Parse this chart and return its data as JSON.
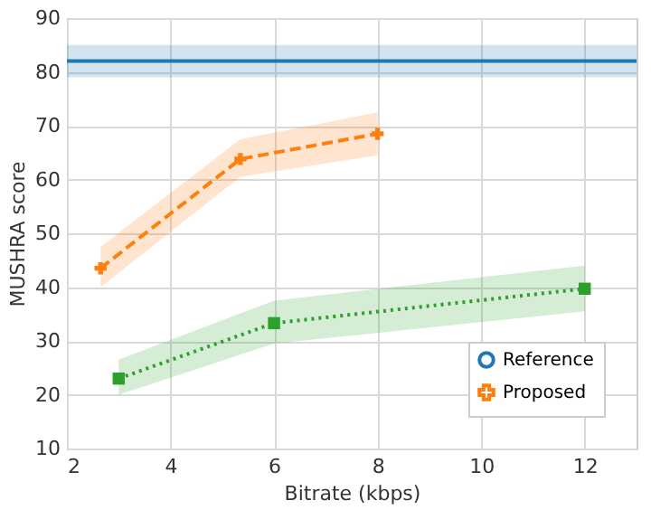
{
  "chart_data": {
    "type": "line",
    "xlabel": "Bitrate (kbps)",
    "ylabel": "MUSHRA score",
    "xlim": [
      2,
      13
    ],
    "xticks": [
      2,
      4,
      6,
      8,
      10,
      12
    ],
    "ylim": [
      10,
      90
    ],
    "yticks": [
      10,
      20,
      30,
      40,
      50,
      60,
      70,
      80,
      90
    ],
    "grid": true,
    "legend": "bottom right",
    "series": [
      {
        "name": "Reference",
        "color": "#1f77b4",
        "x": [
          2,
          13
        ],
        "values": [
          82,
          82
        ],
        "lower": [
          79,
          79
        ],
        "upper": [
          85,
          85
        ],
        "line_style": "solid"
      },
      {
        "name": "Proposed",
        "color": "#ff7f0e",
        "x": [
          2.65,
          5.35,
          8
        ],
        "values": [
          43.5,
          63.8,
          68.5
        ],
        "lower": [
          40,
          60.5,
          64.5
        ],
        "upper": [
          47.5,
          67.5,
          72.5
        ],
        "marker": "cross",
        "line_style": "dashed"
      },
      {
        "color": "#2ca02c",
        "x": [
          3,
          6,
          12
        ],
        "values": [
          23,
          33.3,
          39.7
        ],
        "lower": [
          20,
          29.5,
          35.5
        ],
        "upper": [
          26.5,
          37.5,
          44
        ],
        "marker": "square",
        "line_style": "dotted"
      }
    ]
  }
}
